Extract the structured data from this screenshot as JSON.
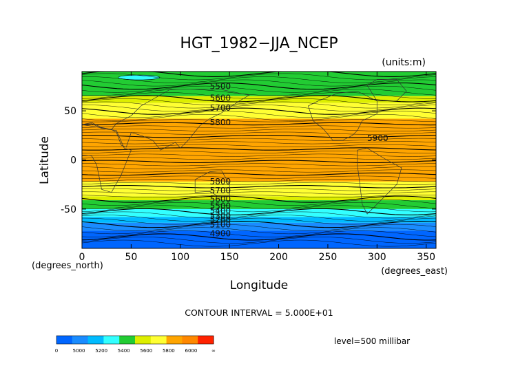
{
  "chart_data": {
    "type": "heatmap",
    "title": "HGT_1982−JJA_NCEP",
    "units": "(units:m)",
    "xlabel": "Longitude",
    "ylabel": "Latitude",
    "x_unit": "(degrees_east)",
    "y_unit": "(degrees_north)",
    "xlim": [
      0,
      360
    ],
    "ylim": [
      -90,
      90
    ],
    "xticks": [
      0,
      50,
      100,
      150,
      200,
      250,
      300,
      350
    ],
    "yticks": [
      50,
      0,
      -50
    ],
    "grid": false,
    "contour_interval_text": "CONTOUR INTERVAL = 5.000E+01",
    "level_text": "level=500 millibar",
    "contour_labels": [
      {
        "text": "5500",
        "x": 130,
        "y": 75
      },
      {
        "text": "5600",
        "x": 130,
        "y": 63
      },
      {
        "text": "5700",
        "x": 130,
        "y": 53
      },
      {
        "text": "5800",
        "x": 130,
        "y": 38
      },
      {
        "text": "5900",
        "x": 290,
        "y": 22
      },
      {
        "text": "5800",
        "x": 130,
        "y": -22
      },
      {
        "text": "5700",
        "x": 130,
        "y": -31
      },
      {
        "text": "5600",
        "x": 130,
        "y": -40
      },
      {
        "text": "5500",
        "x": 130,
        "y": -47
      },
      {
        "text": "5400",
        "x": 130,
        "y": -52
      },
      {
        "text": "5300",
        "x": 130,
        "y": -57
      },
      {
        "text": "5200",
        "x": 130,
        "y": -61
      },
      {
        "text": "5100",
        "x": 130,
        "y": -66
      },
      {
        "text": "4900",
        "x": 130,
        "y": -75
      }
    ],
    "bands": [
      {
        "y0": 90,
        "y1": 65,
        "value": 5500,
        "color": "#22cc33"
      },
      {
        "y0": 65,
        "y1": 58,
        "value": 5600,
        "color": "#ddee00"
      },
      {
        "y0": 58,
        "y1": 42,
        "value": 5700,
        "color": "#ffff33"
      },
      {
        "y0": 42,
        "y1": -22,
        "value": 5800,
        "color": "#ffa500"
      },
      {
        "y0": -22,
        "y1": -37,
        "value": 5700,
        "color": "#ffff33"
      },
      {
        "y0": -37,
        "y1": -41,
        "value": 5600,
        "color": "#ddee00"
      },
      {
        "y0": -41,
        "y1": -50,
        "value": 5500,
        "color": "#22cc33"
      },
      {
        "y0": -50,
        "y1": -58,
        "value": 5400,
        "color": "#33ffff"
      },
      {
        "y0": -58,
        "y1": -64,
        "value": 5300,
        "color": "#00bbff"
      },
      {
        "y0": -64,
        "y1": -72,
        "value": 5100,
        "color": "#1a8cff"
      },
      {
        "y0": -72,
        "y1": -90,
        "value": 4900,
        "color": "#0066ff"
      }
    ],
    "colorbar": {
      "colors": [
        "#0066ff",
        "#1a8cff",
        "#00bbff",
        "#33ffff",
        "#22cc33",
        "#ddee00",
        "#ffff33",
        "#ffa500",
        "#ff8800",
        "#ff2200"
      ],
      "labels": [
        "0",
        "5000",
        "5200",
        "5400",
        "5600",
        "5800",
        "6000",
        "∞"
      ]
    }
  }
}
